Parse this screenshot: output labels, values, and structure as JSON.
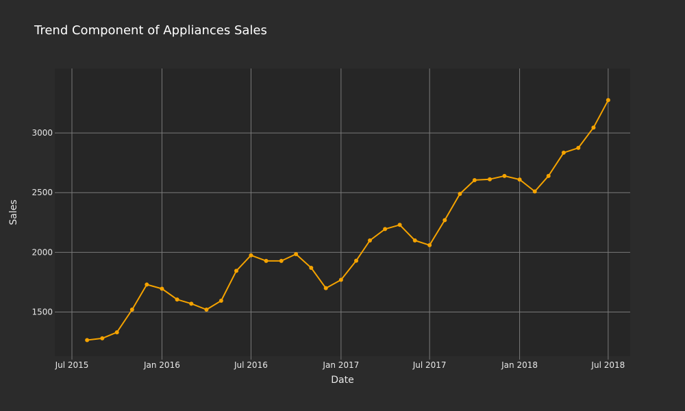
{
  "colors": {
    "background": "#2b2b2b",
    "plot_background": "#262626",
    "grid": "#7a7a7a",
    "line": "#f5a300"
  },
  "chart_data": {
    "type": "line",
    "title": "Trend Component of Appliances Sales",
    "xlabel": "Date",
    "ylabel": "Sales",
    "grid": true,
    "x_ticks": [
      "2015-07-01",
      "2016-01-01",
      "2016-07-01",
      "2017-01-01",
      "2017-07-01",
      "2018-01-01",
      "2018-07-01"
    ],
    "x_tick_labels": [
      "Jul 2015",
      "Jan 2016",
      "Jul 2016",
      "Jan 2017",
      "Jul 2017",
      "Jan 2018",
      "Jul 2018"
    ],
    "x_range": [
      "2015-07-01",
      "2018-08-15"
    ],
    "y_ticks": [
      1500,
      2000,
      2500,
      3000
    ],
    "y_range": [
      1130,
      3540
    ],
    "series": [
      {
        "color": "#f5a300",
        "x": [
          "2015-08-01",
          "2015-09-01",
          "2015-10-01",
          "2015-11-01",
          "2015-12-01",
          "2016-01-01",
          "2016-02-01",
          "2016-03-01",
          "2016-04-01",
          "2016-05-01",
          "2016-06-01",
          "2016-07-01",
          "2016-08-01",
          "2016-09-01",
          "2016-10-01",
          "2016-11-01",
          "2016-12-01",
          "2017-01-01",
          "2017-02-01",
          "2017-03-01",
          "2017-04-01",
          "2017-05-01",
          "2017-06-01",
          "2017-07-01",
          "2017-08-01",
          "2017-09-01",
          "2017-10-01",
          "2017-11-01",
          "2017-12-01",
          "2018-01-01",
          "2018-02-01",
          "2018-03-01",
          "2018-04-01",
          "2018-05-01",
          "2018-06-01",
          "2018-07-01"
        ],
        "y": [
          1265,
          1280,
          1330,
          1520,
          1730,
          1695,
          1605,
          1570,
          1520,
          1595,
          1845,
          1975,
          1928,
          1928,
          1985,
          1870,
          1700,
          1770,
          1930,
          2100,
          2195,
          2230,
          2100,
          2060,
          2270,
          2490,
          2605,
          2612,
          2640,
          2610,
          2510,
          2640,
          2835,
          2875,
          3045,
          3275
        ]
      }
    ]
  }
}
